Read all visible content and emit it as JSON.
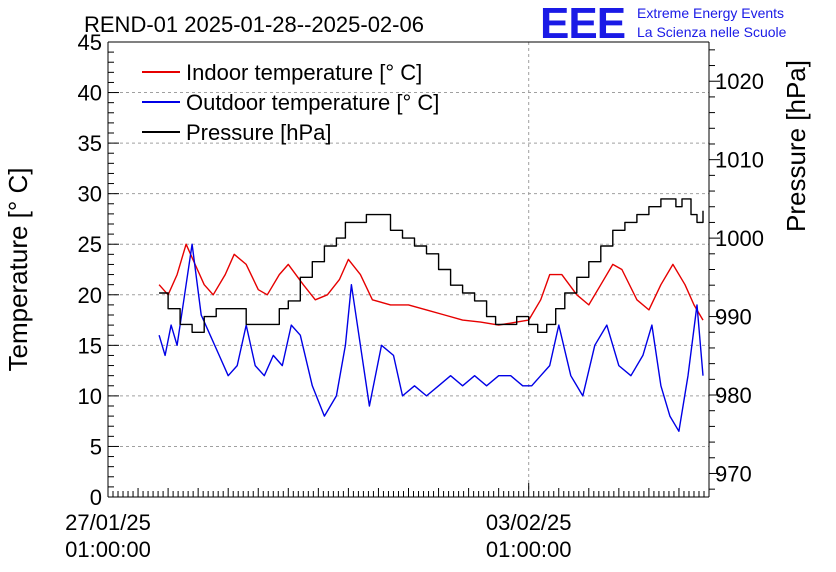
{
  "header": {
    "title": "REND-01 2025-01-28--2025-02-06",
    "logo_mark": "EEE",
    "logo_line1": "Extreme Energy Events",
    "logo_line2": "La Scienza nelle Scuole"
  },
  "colors": {
    "indoor": "#e60000",
    "outdoor": "#0000e6",
    "pressure": "#000000",
    "grid": "#a0a0a0",
    "brand": "#1a1ae6"
  },
  "chart_data": {
    "type": "line",
    "title": "REND-01 2025-01-28--2025-02-06",
    "x_unit": "days since 27/01/25 01:00:00",
    "xlim": [
      0,
      10
    ],
    "x_ticks": [
      {
        "x": 0,
        "line1": "27/01/25",
        "line2": "01:00:00"
      },
      {
        "x": 7,
        "line1": "03/02/25",
        "line2": "01:00:00"
      }
    ],
    "ylabel_left": "Temperature [° C]",
    "ylim_left": [
      0,
      45
    ],
    "y_ticks_left": [
      0,
      5,
      10,
      15,
      20,
      25,
      30,
      35,
      40,
      45
    ],
    "ylabel_right": "Pressure [hPa]",
    "ylim_right": [
      967,
      1025
    ],
    "y_ticks_right": [
      970,
      980,
      990,
      1000,
      1010,
      1020
    ],
    "grid": true,
    "legend_position": "top-left",
    "series": [
      {
        "name": "Indoor temperature [° C]",
        "axis": "left",
        "color": "#e60000",
        "x": [
          0.85,
          1.0,
          1.15,
          1.3,
          1.45,
          1.6,
          1.75,
          1.95,
          2.1,
          2.3,
          2.5,
          2.65,
          2.85,
          3.0,
          3.25,
          3.45,
          3.65,
          3.85,
          4.0,
          4.2,
          4.4,
          4.7,
          5.0,
          5.3,
          5.6,
          5.9,
          6.2,
          6.5,
          6.8,
          7.0,
          7.2,
          7.35,
          7.55,
          7.8,
          8.0,
          8.2,
          8.4,
          8.55,
          8.8,
          9.0,
          9.2,
          9.4,
          9.6,
          9.75,
          9.9
        ],
        "values": [
          21,
          20,
          22,
          25,
          23,
          21,
          20,
          22,
          24,
          23,
          20.5,
          20,
          22,
          23,
          21,
          19.5,
          20,
          21.5,
          23.5,
          22,
          19.5,
          19,
          19,
          18.5,
          18,
          17.5,
          17.3,
          17,
          17.3,
          17.5,
          19.5,
          22,
          22,
          20,
          19,
          21,
          23,
          22.5,
          19.5,
          18.5,
          21,
          23,
          21,
          19,
          17.5
        ]
      },
      {
        "name": "Outdoor temperature [° C]",
        "axis": "left",
        "color": "#0000e6",
        "x": [
          0.85,
          0.95,
          1.05,
          1.15,
          1.3,
          1.4,
          1.55,
          1.7,
          1.85,
          2.0,
          2.15,
          2.3,
          2.45,
          2.6,
          2.75,
          2.9,
          3.05,
          3.2,
          3.4,
          3.6,
          3.8,
          3.95,
          4.05,
          4.2,
          4.35,
          4.55,
          4.75,
          4.9,
          5.1,
          5.3,
          5.5,
          5.7,
          5.9,
          6.1,
          6.3,
          6.5,
          6.7,
          6.9,
          7.05,
          7.2,
          7.35,
          7.5,
          7.7,
          7.9,
          8.1,
          8.3,
          8.5,
          8.7,
          8.9,
          9.05,
          9.2,
          9.35,
          9.5,
          9.65,
          9.8,
          9.9
        ],
        "values": [
          16,
          14,
          17,
          15,
          21,
          25,
          18,
          16,
          14,
          12,
          13,
          17,
          13,
          12,
          14,
          13,
          17,
          16,
          11,
          8,
          10,
          15,
          21,
          15,
          9,
          15,
          14,
          10,
          11,
          10,
          11,
          12,
          11,
          12,
          11,
          12,
          12,
          11,
          11,
          12,
          13,
          17,
          12,
          10,
          15,
          17,
          13,
          12,
          14,
          17,
          11,
          8,
          6.5,
          12,
          19,
          12
        ]
      },
      {
        "name": "Pressure [hPa]",
        "axis": "right",
        "color": "#000000",
        "x": [
          0.85,
          1.0,
          1.2,
          1.4,
          1.6,
          1.8,
          2.0,
          2.3,
          2.5,
          2.7,
          2.85,
          3.0,
          3.2,
          3.4,
          3.6,
          3.8,
          3.95,
          4.1,
          4.3,
          4.5,
          4.7,
          4.9,
          5.1,
          5.3,
          5.5,
          5.7,
          5.9,
          6.1,
          6.3,
          6.45,
          6.6,
          6.8,
          7.0,
          7.15,
          7.3,
          7.45,
          7.6,
          7.8,
          8.0,
          8.2,
          8.4,
          8.6,
          8.8,
          9.0,
          9.2,
          9.3,
          9.45,
          9.55,
          9.7,
          9.8,
          9.9
        ],
        "values": [
          993,
          991,
          989,
          988,
          990,
          991,
          991,
          989,
          989,
          989,
          991,
          992,
          995,
          997,
          999,
          1000,
          1002,
          1002,
          1003,
          1003,
          1001,
          1000,
          999,
          998,
          996,
          994,
          993,
          992,
          990,
          989,
          989,
          990,
          989,
          988,
          989,
          991,
          993,
          995,
          997,
          999,
          1001,
          1002,
          1003,
          1004,
          1005,
          1005,
          1004,
          1005,
          1003,
          1002,
          1003.5
        ]
      }
    ]
  }
}
